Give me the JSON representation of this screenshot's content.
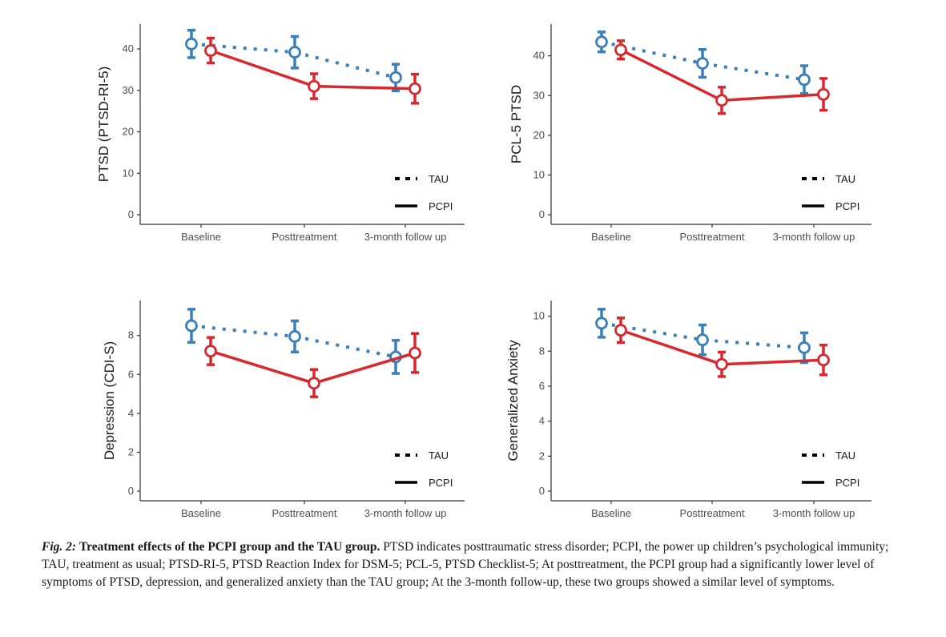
{
  "series_styles": {
    "TAU": {
      "color": "#3a7fba",
      "dash": "dotted"
    },
    "PCPI": {
      "color": "#d7282f",
      "dash": "solid"
    }
  },
  "chart_data": [
    {
      "type": "line",
      "categories": [
        "Baseline",
        "Posttreatment",
        "3-month follow up"
      ],
      "ylabel": "PTSD (PTSD-RI-5)",
      "ylim": [
        0,
        46
      ],
      "yticks": [
        0,
        10,
        20,
        30,
        40
      ],
      "legend": "bottom-right",
      "grid": false,
      "series": [
        {
          "name": "TAU",
          "values": [
            41.2,
            39.2,
            33.1
          ],
          "errors": [
            3.3,
            3.8,
            3.2
          ]
        },
        {
          "name": "PCPI",
          "values": [
            39.6,
            31.0,
            30.4
          ],
          "errors": [
            3.0,
            3.0,
            3.5
          ]
        }
      ]
    },
    {
      "type": "line",
      "categories": [
        "Baseline",
        "Posttreatment",
        "3-month follow up"
      ],
      "ylabel": "PCL-5 PTSD",
      "ylim": [
        0,
        48
      ],
      "yticks": [
        0,
        10,
        20,
        30,
        40
      ],
      "legend": "bottom-right",
      "grid": false,
      "series": [
        {
          "name": "TAU",
          "values": [
            43.5,
            38.1,
            34.0
          ],
          "errors": [
            2.5,
            3.5,
            3.5
          ]
        },
        {
          "name": "PCPI",
          "values": [
            41.5,
            28.8,
            30.3
          ],
          "errors": [
            2.3,
            3.3,
            4.0
          ]
        }
      ]
    },
    {
      "type": "line",
      "categories": [
        "Baseline",
        "Posttreatment",
        "3-month follow up"
      ],
      "ylabel": "Depression (CDI-S)",
      "ylim": [
        0,
        9.8
      ],
      "yticks": [
        0,
        2,
        4,
        6,
        8
      ],
      "legend": "bottom-right",
      "grid": false,
      "series": [
        {
          "name": "TAU",
          "values": [
            8.5,
            7.95,
            6.9
          ],
          "errors": [
            0.85,
            0.8,
            0.85
          ]
        },
        {
          "name": "PCPI",
          "values": [
            7.2,
            5.55,
            7.1
          ],
          "errors": [
            0.7,
            0.7,
            1.0
          ]
        }
      ]
    },
    {
      "type": "line",
      "categories": [
        "Baseline",
        "Posttreatment",
        "3-month follow up"
      ],
      "ylabel": "Generalized Anxiety",
      "ylim": [
        0,
        10.9
      ],
      "yticks": [
        0,
        2,
        4,
        6,
        8,
        10
      ],
      "legend": "bottom-right",
      "grid": false,
      "series": [
        {
          "name": "TAU",
          "values": [
            9.6,
            8.65,
            8.2
          ],
          "errors": [
            0.8,
            0.85,
            0.85
          ]
        },
        {
          "name": "PCPI",
          "values": [
            9.2,
            7.25,
            7.5
          ],
          "errors": [
            0.7,
            0.7,
            0.85
          ]
        }
      ]
    }
  ],
  "caption": {
    "fig_label": "Fig. 2:",
    "title": "Treatment effects of the PCPI group and the TAU group.",
    "text": "PTSD indicates posttraumatic stress disorder; PCPI, the power up children’s psychological immunity; TAU, treatment as usual; PTSD-RI-5, PTSD Reaction Index for DSM-5; PCL-5, PTSD Checklist-5; At posttreatment, the PCPI group had a significantly lower level of symptoms of PTSD, depression, and generalized anxiety than the TAU group; At the 3-month follow-up, these two groups showed a similar level of symptoms."
  }
}
